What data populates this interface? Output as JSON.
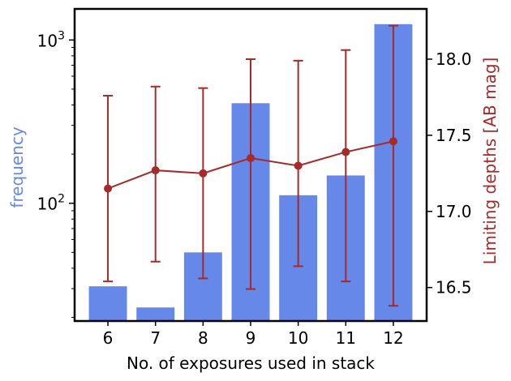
{
  "chart_data": {
    "type": "bar",
    "title": "",
    "xlabel": "No. of exposures used in stack",
    "categories": [
      "6",
      "7",
      "8",
      "9",
      "10",
      "11",
      "12"
    ],
    "x": [
      6,
      7,
      8,
      9,
      10,
      11,
      12
    ],
    "left_axis": {
      "label": "frequency",
      "scale": "log",
      "ylim": [
        19,
        1550
      ],
      "ticks": [
        {
          "value": 100,
          "base": "10",
          "exp": "2"
        },
        {
          "value": 1000,
          "base": "10",
          "exp": "3"
        }
      ],
      "color": "#6688e8"
    },
    "right_axis": {
      "label": "Limiting depths [AB mag]",
      "scale": "linear",
      "ylim": [
        16.28,
        18.33
      ],
      "ticks": [
        "16.5",
        "17.0",
        "17.5",
        "18.0"
      ],
      "color": "#a52a2a"
    },
    "series": [
      {
        "type": "bar",
        "axis": "left",
        "color": "#6688e8",
        "values": [
          31,
          23,
          50,
          410,
          112,
          148,
          1250
        ]
      },
      {
        "type": "line",
        "axis": "right",
        "color": "#a52a2a",
        "markers": true,
        "values": [
          17.15,
          17.27,
          17.25,
          17.35,
          17.3,
          17.39,
          17.46
        ],
        "error_low": [
          16.54,
          16.67,
          16.56,
          16.49,
          16.64,
          16.54,
          16.38
        ],
        "error_high": [
          17.76,
          17.82,
          17.81,
          18.0,
          17.99,
          18.06,
          18.22
        ]
      }
    ],
    "grid": false,
    "legend": "none"
  }
}
